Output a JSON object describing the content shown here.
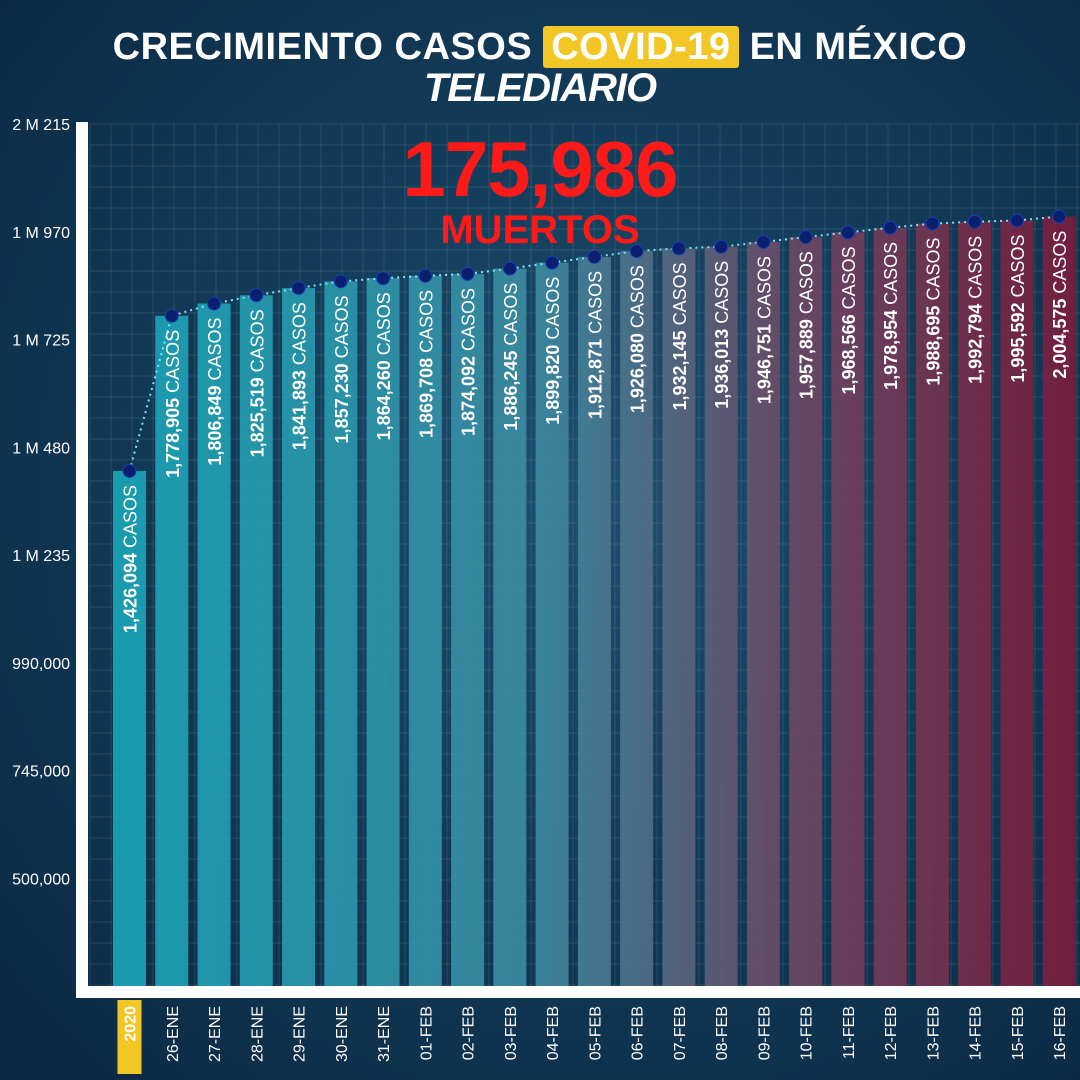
{
  "header": {
    "title_pre": "CRECIMIENTO CASOS",
    "title_highlight": "COVID-19",
    "title_post": "EN MÉXICO",
    "brand": "TELEDIARIO"
  },
  "deaths": {
    "value": "175,986",
    "label": "MUERTOS"
  },
  "colors": {
    "bar_start": "#17a6b8",
    "bar_end": "#7a1c3c",
    "dot": "#0a1f6e",
    "highlight": "#f2c624",
    "deaths": "#ff1a1a"
  },
  "chart_data": {
    "type": "bar",
    "title": "CRECIMIENTO CASOS COVID-19 EN MÉXICO",
    "unit_suffix": "CASOS",
    "ylim": [
      255000,
      2215000
    ],
    "yticks": [
      {
        "value": 500000,
        "label": "500,000"
      },
      {
        "value": 745000,
        "label": "745,000"
      },
      {
        "value": 990000,
        "label": "990,000"
      },
      {
        "value": 1235000,
        "label": "1 M 235"
      },
      {
        "value": 1480000,
        "label": "1 M 480"
      },
      {
        "value": 1725000,
        "label": "1 M 725"
      },
      {
        "value": 1970000,
        "label": "1 M 970"
      },
      {
        "value": 2215000,
        "label": "2 M 215"
      }
    ],
    "categories": [
      "2020",
      "26-ENE",
      "27-ENE",
      "28-ENE",
      "29-ENE",
      "30-ENE",
      "31-ENE",
      "01-FEB",
      "02-FEB",
      "03-FEB",
      "04-FEB",
      "05-FEB",
      "06-FEB",
      "07-FEB",
      "08-FEB",
      "09-FEB",
      "10-FEB",
      "11-FEB",
      "12-FEB",
      "13-FEB",
      "14-FEB",
      "15-FEB",
      "16-FEB"
    ],
    "highlight_category": "2020",
    "values": [
      1426094,
      1778905,
      1806849,
      1825519,
      1841893,
      1857230,
      1864260,
      1869708,
      1874092,
      1886245,
      1899820,
      1912871,
      1926080,
      1932145,
      1936013,
      1946751,
      1957889,
      1968566,
      1978954,
      1988695,
      1992794,
      1995592,
      2004575
    ],
    "value_labels": [
      "1,426,094",
      "1,778,905",
      "1,806,849",
      "1,825,519",
      "1,841,893",
      "1,857,230",
      "1,864,260",
      "1,869,708",
      "1,874,092",
      "1,886,245",
      "1,899,820",
      "1,912,871",
      "1,926,080",
      "1,932,145",
      "1,936,013",
      "1,946,751",
      "1,957,889",
      "1,968,566",
      "1,978,954",
      "1,988,695",
      "1,992,794",
      "1,995,592",
      "2,004,575"
    ],
    "grid": true,
    "legend": "none"
  }
}
